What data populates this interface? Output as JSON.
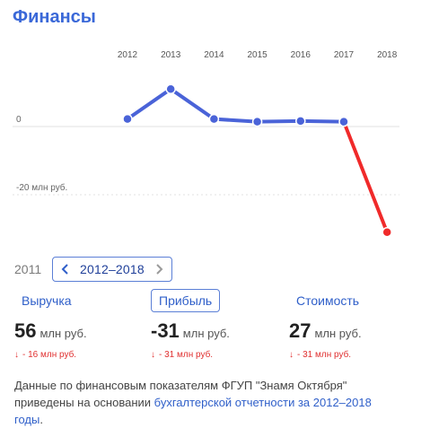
{
  "header": {
    "title": "Финансы"
  },
  "chart_data": {
    "type": "line",
    "x": [
      "2012",
      "2013",
      "2014",
      "2015",
      "2016",
      "2017",
      "2018"
    ],
    "series": [
      {
        "values": [
          2.2,
          11.0,
          2.2,
          1.4,
          1.6,
          1.4,
          -31
        ]
      }
    ],
    "y_ticks": [
      {
        "value": 0,
        "label": "0"
      },
      {
        "value": -20,
        "label": "-20 млн руб."
      }
    ],
    "ylim": [
      -35,
      15
    ],
    "colors": {
      "positive": "#4a63d8",
      "negative": "#f02a2a",
      "grid": "#e2e2e2"
    }
  },
  "range": {
    "prev_year": "2011",
    "label": "2012–2018",
    "prev_icon": "chevron-left-icon",
    "next_icon": "chevron-right-icon"
  },
  "metrics": [
    {
      "label": "Выручка",
      "value": "56",
      "unit": "млн руб.",
      "change": "- 16 млн руб.",
      "active": false
    },
    {
      "label": "Прибыль",
      "value": "-31",
      "unit": "млн руб.",
      "change": "- 31 млн руб.",
      "active": true
    },
    {
      "label": "Стоимость",
      "value": "27",
      "unit": "млн руб.",
      "change": "- 31 млн руб.",
      "active": false
    }
  ],
  "note": {
    "text": "Данные по финансовым показателям ФГУП \"Знамя Октября\" приведены на основании ",
    "link": "бухгалтерской отчетности за 2012–2018 годы",
    "suffix": "."
  }
}
